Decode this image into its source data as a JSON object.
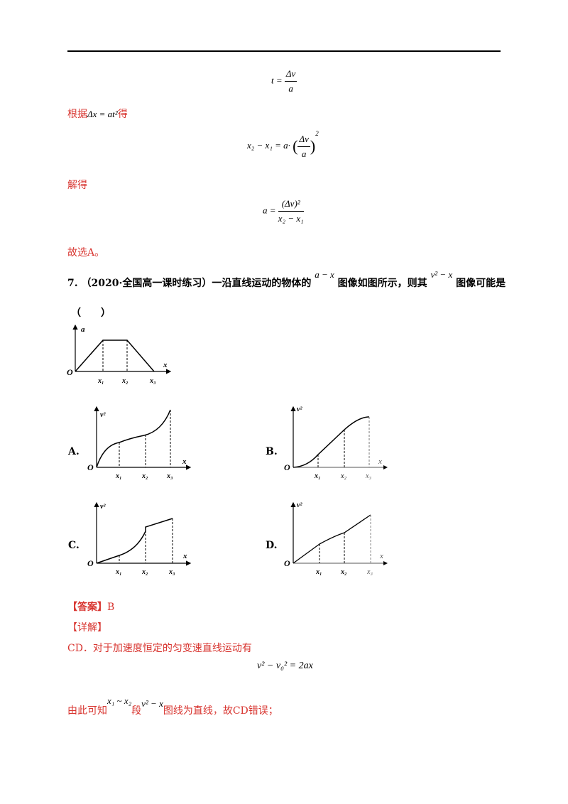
{
  "eq_t": {
    "lhs": "t =",
    "num": "Δv",
    "den": "a"
  },
  "line_basis": {
    "prefix": "根据",
    "formula": "Δx = at²",
    "suffix": "得"
  },
  "eq_x": {
    "lhs": "x₂ − x₁ = a·",
    "num": "Δv",
    "den": "a",
    "exp": "2"
  },
  "line_solve": "解得",
  "eq_a": {
    "lhs": "a =",
    "num": "(Δv)²",
    "den": "x₂ − x₁"
  },
  "line_choose": "故选A。",
  "question": {
    "number": "7.",
    "source": "（2020·全国高一课时练习）",
    "text1": "一沿直线运动的物体的",
    "math1": "a − x",
    "text2": "图像如图所示，则其",
    "math2": "v² − x",
    "text3": "图像可能是",
    "blank": "（　　）"
  },
  "given_graph": {
    "y_label": "a",
    "x_label": "x",
    "origin": "O",
    "ticks": [
      "x₁",
      "x₂",
      "x₃"
    ]
  },
  "options": [
    {
      "letter": "A.",
      "y_label": "v²",
      "x_label": "x",
      "origin": "O",
      "ticks": [
        "x₁",
        "x₂",
        "x₃"
      ]
    },
    {
      "letter": "B.",
      "y_label": "v²",
      "x_label": "x",
      "origin": "O",
      "ticks": [
        "x₁",
        "x₂",
        "x₃"
      ]
    },
    {
      "letter": "C.",
      "y_label": "v²",
      "x_label": "x",
      "origin": "O",
      "ticks": [
        "x₁",
        "x₂",
        "x₃"
      ]
    },
    {
      "letter": "D.",
      "y_label": "v²",
      "x_label": "x",
      "origin": "O",
      "ticks": [
        "x₁",
        "x₂",
        "x₃"
      ]
    }
  ],
  "answer": {
    "label": "【答案】",
    "value": "B"
  },
  "detail_label": "【详解】",
  "detail_line1": "CD．对于加速度恒定的匀变速直线运动有",
  "eq_v": "v² − v₀² = 2ax",
  "detail_line2": {
    "prefix": "由此可知",
    "math1": "x₁ ~ x₂",
    "mid": "段",
    "math2": "v² − x",
    "suffix": "图线为直线，故CD错误；"
  }
}
